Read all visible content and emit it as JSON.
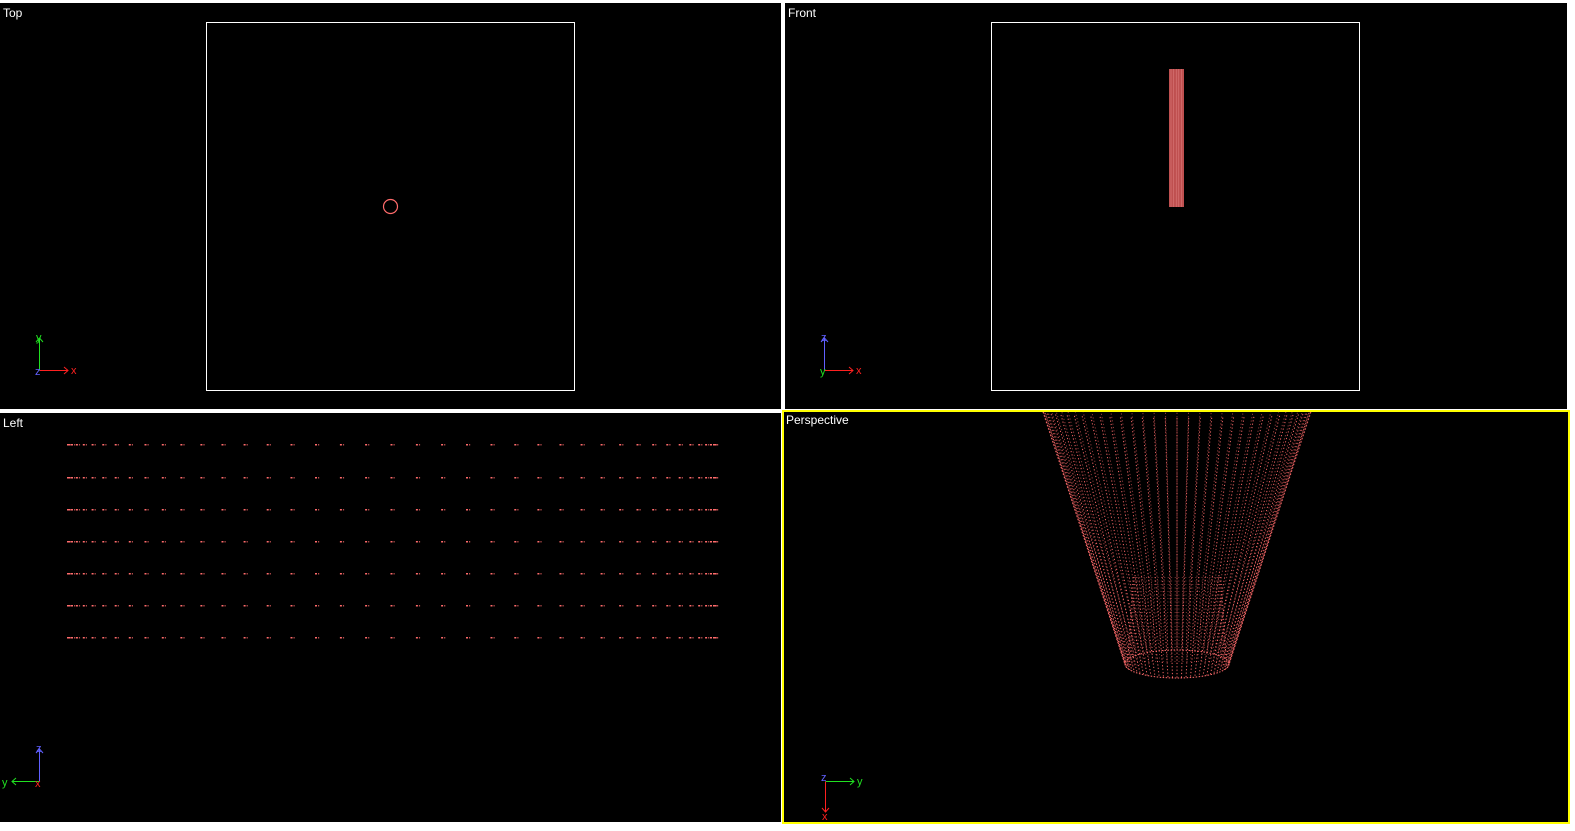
{
  "viewports": {
    "top": {
      "label": "Top",
      "axes": {
        "horizontal": "x",
        "vertical": "y",
        "depth": "z"
      }
    },
    "front": {
      "label": "Front",
      "axes": {
        "horizontal": "x",
        "vertical": "z",
        "depth": "y"
      }
    },
    "left": {
      "label": "Left",
      "axes": {
        "horizontal": "y",
        "vertical": "z",
        "depth": "x"
      }
    },
    "perspective": {
      "label": "Perspective",
      "active": true,
      "axes": {
        "horizontal": "y",
        "vertical": "x",
        "depth": "z"
      }
    }
  },
  "colors": {
    "background": "#000000",
    "separator": "#ffffff",
    "bounding_box": "#ffffff",
    "object": "#ff6b6b",
    "active_border": "#ffff00",
    "axis_x": "#ff2020",
    "axis_y": "#20e020",
    "axis_z": "#6060ff",
    "label_text": "#ffffff"
  }
}
